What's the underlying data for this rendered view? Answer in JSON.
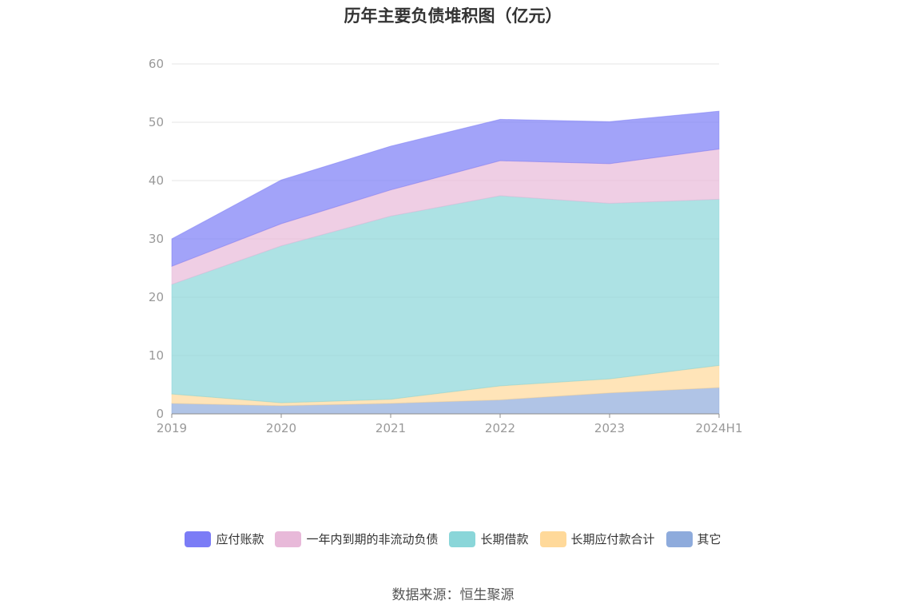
{
  "chart_data": {
    "type": "area",
    "stacked": true,
    "title": "历年主要负债堆积图（亿元）",
    "categories": [
      "2019",
      "2020",
      "2021",
      "2022",
      "2023",
      "2024H1"
    ],
    "ylim": [
      0,
      60
    ],
    "yticks": [
      0,
      10,
      20,
      30,
      40,
      50,
      60
    ],
    "grid": true,
    "legend_position": "bottom",
    "series": [
      {
        "name": "其它",
        "color": "#8eabdc",
        "values": [
          1.8,
          1.4,
          1.8,
          2.4,
          3.6,
          4.5
        ]
      },
      {
        "name": "长期应付款合计",
        "color": "#ffd99a",
        "values": [
          1.6,
          0.5,
          0.7,
          2.4,
          2.4,
          3.8
        ]
      },
      {
        "name": "长期借款",
        "color": "#8ad6d9",
        "values": [
          18.8,
          26.9,
          31.4,
          32.6,
          30.1,
          28.5
        ]
      },
      {
        "name": "一年内到期的非流动负债",
        "color": "#e8b9d9",
        "values": [
          3.1,
          3.8,
          4.5,
          6.0,
          6.8,
          8.6
        ]
      },
      {
        "name": "应付账款",
        "color": "#7b7cf6",
        "values": [
          4.7,
          7.5,
          7.5,
          7.1,
          7.2,
          6.5
        ]
      }
    ]
  },
  "source": "数据来源：恒生聚源"
}
